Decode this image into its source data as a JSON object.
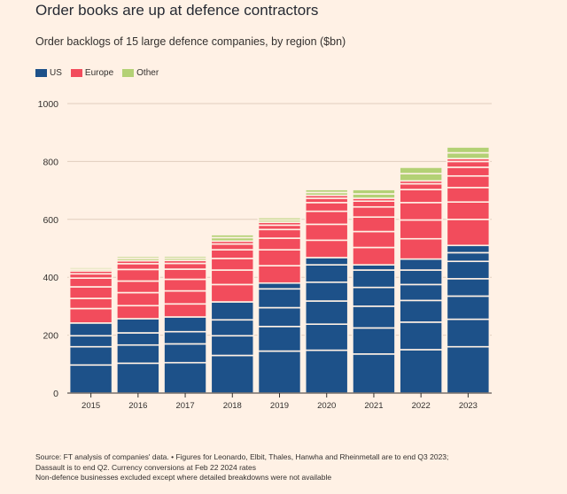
{
  "title": "Order books are up at defence contractors",
  "subtitle": "Order backlogs of 15 large defence companies, by region ($bn)",
  "legend": [
    {
      "label": "US",
      "color": "#1d5189"
    },
    {
      "label": "Europe",
      "color": "#f24c5c"
    },
    {
      "label": "Other",
      "color": "#b3d175"
    }
  ],
  "source": {
    "line1": "Source: FT analysis of companies' data. • Figures for Leonardo, Elbit, Thales, Hanwha and Rheinmetall are to end Q3 2023;",
    "line2": "Dassault is to end Q2. Currency conversions at Feb 22 2024 rates",
    "line3": "Non-defence businesses excluded except where detailed breakdowns were not available"
  },
  "chart_data": {
    "type": "bar",
    "stacked": true,
    "categories": [
      "2015",
      "2016",
      "2017",
      "2018",
      "2019",
      "2020",
      "2021",
      "2022",
      "2023"
    ],
    "ylim": [
      0,
      1000
    ],
    "yticks": [
      0,
      200,
      400,
      600,
      800,
      1000
    ],
    "grid": true,
    "legend_position": "top-left",
    "series": [
      {
        "name": "US",
        "color": "#1d5189",
        "totals": [
          242,
          257,
          263,
          315,
          380,
          468,
          443,
          463,
          510
        ]
      },
      {
        "name": "Europe",
        "color": "#f24c5c",
        "totals": [
          180,
          200,
          195,
          210,
          210,
          215,
          230,
          270,
          300
        ]
      },
      {
        "name": "Other",
        "color": "#b3d175",
        "totals": [
          12,
          15,
          15,
          22,
          16,
          20,
          30,
          47,
          40
        ]
      }
    ],
    "segments": [
      [
        {
          "s": "US",
          "v": 97
        },
        {
          "s": "US",
          "v": 63
        },
        {
          "s": "US",
          "v": 38
        },
        {
          "s": "US",
          "v": 44
        },
        {
          "s": "Europe",
          "v": 50
        },
        {
          "s": "Europe",
          "v": 35
        },
        {
          "s": "Europe",
          "v": 40
        },
        {
          "s": "Europe",
          "v": 30
        },
        {
          "s": "Europe",
          "v": 15
        },
        {
          "s": "Europe",
          "v": 10
        },
        {
          "s": "Other",
          "v": 6
        },
        {
          "s": "Other",
          "v": 6
        }
      ],
      [
        {
          "s": "US",
          "v": 103
        },
        {
          "s": "US",
          "v": 63
        },
        {
          "s": "US",
          "v": 42
        },
        {
          "s": "US",
          "v": 49
        },
        {
          "s": "Europe",
          "v": 45
        },
        {
          "s": "Europe",
          "v": 45
        },
        {
          "s": "Europe",
          "v": 40
        },
        {
          "s": "Europe",
          "v": 40
        },
        {
          "s": "Europe",
          "v": 20
        },
        {
          "s": "Europe",
          "v": 10
        },
        {
          "s": "Other",
          "v": 8
        },
        {
          "s": "Other",
          "v": 7
        }
      ],
      [
        {
          "s": "US",
          "v": 105
        },
        {
          "s": "US",
          "v": 65
        },
        {
          "s": "US",
          "v": 42
        },
        {
          "s": "US",
          "v": 51
        },
        {
          "s": "Europe",
          "v": 45
        },
        {
          "s": "Europe",
          "v": 45
        },
        {
          "s": "Europe",
          "v": 40
        },
        {
          "s": "Europe",
          "v": 35
        },
        {
          "s": "Europe",
          "v": 20
        },
        {
          "s": "Europe",
          "v": 10
        },
        {
          "s": "Other",
          "v": 8
        },
        {
          "s": "Other",
          "v": 7
        }
      ],
      [
        {
          "s": "US",
          "v": 130
        },
        {
          "s": "US",
          "v": 68
        },
        {
          "s": "US",
          "v": 55
        },
        {
          "s": "US",
          "v": 62
        },
        {
          "s": "Europe",
          "v": 60
        },
        {
          "s": "Europe",
          "v": 50
        },
        {
          "s": "Europe",
          "v": 40
        },
        {
          "s": "Europe",
          "v": 30
        },
        {
          "s": "Europe",
          "v": 20
        },
        {
          "s": "Europe",
          "v": 10
        },
        {
          "s": "Other",
          "v": 12
        },
        {
          "s": "Other",
          "v": 10
        }
      ],
      [
        {
          "s": "US",
          "v": 145
        },
        {
          "s": "US",
          "v": 85
        },
        {
          "s": "US",
          "v": 65
        },
        {
          "s": "US",
          "v": 65
        },
        {
          "s": "US",
          "v": 20
        },
        {
          "s": "Europe",
          "v": 60
        },
        {
          "s": "Europe",
          "v": 55
        },
        {
          "s": "Europe",
          "v": 40
        },
        {
          "s": "Europe",
          "v": 30
        },
        {
          "s": "Europe",
          "v": 15
        },
        {
          "s": "Europe",
          "v": 10
        },
        {
          "s": "Other",
          "v": 8
        },
        {
          "s": "Other",
          "v": 8
        }
      ],
      [
        {
          "s": "US",
          "v": 148
        },
        {
          "s": "US",
          "v": 90
        },
        {
          "s": "US",
          "v": 80
        },
        {
          "s": "US",
          "v": 65
        },
        {
          "s": "US",
          "v": 60
        },
        {
          "s": "US",
          "v": 25
        },
        {
          "s": "Europe",
          "v": 60
        },
        {
          "s": "Europe",
          "v": 55
        },
        {
          "s": "Europe",
          "v": 45
        },
        {
          "s": "Europe",
          "v": 30
        },
        {
          "s": "Europe",
          "v": 15
        },
        {
          "s": "Europe",
          "v": 10
        },
        {
          "s": "Other",
          "v": 10
        },
        {
          "s": "Other",
          "v": 10
        }
      ],
      [
        {
          "s": "US",
          "v": 135
        },
        {
          "s": "US",
          "v": 90
        },
        {
          "s": "US",
          "v": 75
        },
        {
          "s": "US",
          "v": 65
        },
        {
          "s": "US",
          "v": 60
        },
        {
          "s": "US",
          "v": 18
        },
        {
          "s": "Europe",
          "v": 60
        },
        {
          "s": "Europe",
          "v": 55
        },
        {
          "s": "Europe",
          "v": 50
        },
        {
          "s": "Europe",
          "v": 35
        },
        {
          "s": "Europe",
          "v": 20
        },
        {
          "s": "Europe",
          "v": 10
        },
        {
          "s": "Other",
          "v": 15
        },
        {
          "s": "Other",
          "v": 15
        }
      ],
      [
        {
          "s": "US",
          "v": 150
        },
        {
          "s": "US",
          "v": 95
        },
        {
          "s": "US",
          "v": 75
        },
        {
          "s": "US",
          "v": 55
        },
        {
          "s": "US",
          "v": 50
        },
        {
          "s": "US",
          "v": 38
        },
        {
          "s": "Europe",
          "v": 70
        },
        {
          "s": "Europe",
          "v": 65
        },
        {
          "s": "Europe",
          "v": 60
        },
        {
          "s": "Europe",
          "v": 45
        },
        {
          "s": "Europe",
          "v": 20
        },
        {
          "s": "Europe",
          "v": 10
        },
        {
          "s": "Other",
          "v": 25
        },
        {
          "s": "Other",
          "v": 22
        }
      ],
      [
        {
          "s": "US",
          "v": 160
        },
        {
          "s": "US",
          "v": 95
        },
        {
          "s": "US",
          "v": 80
        },
        {
          "s": "US",
          "v": 60
        },
        {
          "s": "US",
          "v": 60
        },
        {
          "s": "US",
          "v": 30
        },
        {
          "s": "US",
          "v": 25
        },
        {
          "s": "Europe",
          "v": 90
        },
        {
          "s": "Europe",
          "v": 60
        },
        {
          "s": "Europe",
          "v": 50
        },
        {
          "s": "Europe",
          "v": 40
        },
        {
          "s": "Europe",
          "v": 30
        },
        {
          "s": "Europe",
          "v": 20
        },
        {
          "s": "Europe",
          "v": 10
        },
        {
          "s": "Other",
          "v": 20
        },
        {
          "s": "Other",
          "v": 20
        }
      ]
    ]
  }
}
